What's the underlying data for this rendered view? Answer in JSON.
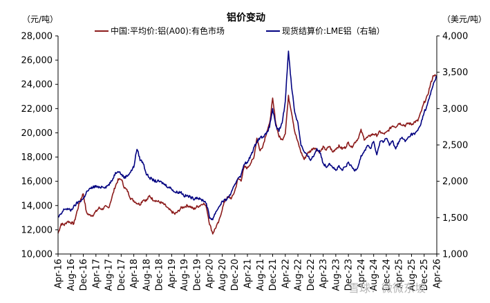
{
  "chart_data": {
    "type": "line",
    "title": "铝价变动",
    "left_unit": "（元/吨）",
    "right_unit": "（美元/吨）",
    "left_ylim": [
      10000,
      28000
    ],
    "right_ylim": [
      1000,
      4000
    ],
    "left_ticks": [
      "10,000",
      "12,000",
      "14,000",
      "16,000",
      "18,000",
      "20,000",
      "22,000",
      "24,000",
      "26,000",
      "28,000"
    ],
    "right_ticks": [
      "1,000",
      "1,500",
      "2,000",
      "2,500",
      "3,000",
      "3,500",
      "4,000"
    ],
    "x_labels": [
      "Apr-16",
      "Aug-16",
      "Dec-16",
      "Apr-17",
      "Aug-17",
      "Dec-17",
      "Apr-18",
      "Aug-18",
      "Dec-18",
      "Apr-19",
      "Aug-19",
      "Dec-19",
      "Apr-20",
      "Aug-20",
      "Dec-20",
      "Apr-21",
      "Aug-21",
      "Dec-21",
      "Apr-22",
      "Aug-22",
      "Dec-22",
      "Apr-23",
      "Aug-23",
      "Dec-23",
      "Apr-24",
      "Aug-24",
      "Dec-24",
      "Apr-25",
      "Aug-25",
      "Dec-25",
      "Apr-26"
    ],
    "x_range_months": [
      0,
      120
    ],
    "series": [
      {
        "name": "中国:平均价:铝(A00):有色市场",
        "axis": "left",
        "color": "#8B1A1A",
        "points": [
          [
            0,
            11700
          ],
          [
            1,
            12500
          ],
          [
            2,
            12400
          ],
          [
            3,
            12700
          ],
          [
            4,
            12600
          ],
          [
            5,
            12500
          ],
          [
            6,
            13500
          ],
          [
            7,
            14400
          ],
          [
            8,
            15000
          ],
          [
            9,
            13400
          ],
          [
            10,
            13200
          ],
          [
            11,
            13200
          ],
          [
            12,
            13500
          ],
          [
            13,
            13800
          ],
          [
            14,
            13700
          ],
          [
            15,
            13900
          ],
          [
            16,
            13800
          ],
          [
            17,
            14600
          ],
          [
            18,
            15500
          ],
          [
            19,
            16100
          ],
          [
            20,
            16200
          ],
          [
            21,
            15500
          ],
          [
            22,
            15200
          ],
          [
            23,
            14600
          ],
          [
            24,
            14400
          ],
          [
            25,
            14200
          ],
          [
            26,
            14100
          ],
          [
            27,
            14500
          ],
          [
            28,
            14400
          ],
          [
            29,
            14800
          ],
          [
            30,
            14500
          ],
          [
            31,
            14400
          ],
          [
            32,
            14300
          ],
          [
            33,
            14200
          ],
          [
            34,
            14000
          ],
          [
            35,
            13700
          ],
          [
            36,
            13500
          ],
          [
            37,
            13300
          ],
          [
            38,
            13500
          ],
          [
            39,
            13800
          ],
          [
            40,
            13900
          ],
          [
            41,
            14000
          ],
          [
            42,
            13900
          ],
          [
            43,
            13700
          ],
          [
            44,
            13900
          ],
          [
            45,
            14000
          ],
          [
            46,
            14200
          ],
          [
            47,
            13900
          ],
          [
            48,
            12500
          ],
          [
            49,
            11700
          ],
          [
            50,
            12200
          ],
          [
            51,
            12700
          ],
          [
            52,
            13700
          ],
          [
            53,
            14500
          ],
          [
            54,
            14700
          ],
          [
            55,
            14600
          ],
          [
            56,
            15200
          ],
          [
            57,
            16200
          ],
          [
            58,
            16100
          ],
          [
            59,
            17200
          ],
          [
            60,
            17100
          ],
          [
            61,
            17500
          ],
          [
            62,
            17900
          ],
          [
            63,
            19600
          ],
          [
            64,
            18500
          ],
          [
            65,
            19000
          ],
          [
            66,
            20000
          ],
          [
            67,
            20700
          ],
          [
            68,
            22800
          ],
          [
            69,
            20800
          ],
          [
            70,
            19700
          ],
          [
            71,
            19400
          ],
          [
            72,
            20000
          ],
          [
            73,
            23000
          ],
          [
            74,
            21700
          ],
          [
            75,
            20100
          ],
          [
            76,
            19200
          ],
          [
            77,
            18400
          ],
          [
            78,
            17800
          ],
          [
            79,
            18300
          ],
          [
            80,
            18500
          ],
          [
            81,
            18800
          ],
          [
            82,
            18600
          ],
          [
            83,
            18400
          ],
          [
            84,
            18800
          ],
          [
            85,
            18600
          ],
          [
            86,
            18900
          ],
          [
            87,
            18400
          ],
          [
            88,
            18700
          ],
          [
            89,
            18900
          ],
          [
            90,
            18700
          ],
          [
            91,
            18800
          ],
          [
            92,
            19200
          ],
          [
            93,
            18800
          ],
          [
            94,
            19200
          ],
          [
            95,
            19500
          ],
          [
            96,
            20200
          ],
          [
            97,
            19500
          ],
          [
            98,
            19600
          ],
          [
            99,
            19800
          ],
          [
            100,
            19900
          ],
          [
            101,
            19800
          ],
          [
            102,
            20100
          ],
          [
            103,
            19900
          ],
          [
            104,
            20000
          ],
          [
            105,
            20300
          ],
          [
            106,
            20600
          ],
          [
            107,
            20500
          ],
          [
            108,
            20800
          ],
          [
            109,
            20700
          ],
          [
            110,
            20600
          ],
          [
            111,
            20800
          ],
          [
            112,
            20700
          ],
          [
            113,
            20900
          ],
          [
            114,
            21000
          ],
          [
            115,
            21700
          ],
          [
            116,
            22500
          ],
          [
            117,
            23000
          ],
          [
            118,
            24000
          ],
          [
            119,
            24800
          ],
          [
            120,
            24600
          ]
        ]
      },
      {
        "name": "现货结算价:LME铝（右轴）",
        "axis": "right",
        "color": "#000080",
        "points": [
          [
            0,
            1500
          ],
          [
            1,
            1550
          ],
          [
            2,
            1620
          ],
          [
            3,
            1620
          ],
          [
            4,
            1600
          ],
          [
            5,
            1650
          ],
          [
            6,
            1700
          ],
          [
            7,
            1730
          ],
          [
            8,
            1760
          ],
          [
            9,
            1850
          ],
          [
            10,
            1890
          ],
          [
            11,
            1920
          ],
          [
            12,
            1930
          ],
          [
            13,
            1910
          ],
          [
            14,
            1930
          ],
          [
            15,
            1920
          ],
          [
            16,
            1950
          ],
          [
            17,
            2000
          ],
          [
            18,
            2100
          ],
          [
            19,
            2150
          ],
          [
            20,
            2100
          ],
          [
            21,
            2050
          ],
          [
            22,
            2080
          ],
          [
            23,
            2130
          ],
          [
            24,
            2200
          ],
          [
            25,
            2450
          ],
          [
            26,
            2300
          ],
          [
            27,
            2250
          ],
          [
            28,
            2100
          ],
          [
            29,
            2050
          ],
          [
            30,
            2020
          ],
          [
            31,
            2000
          ],
          [
            32,
            2000
          ],
          [
            33,
            1980
          ],
          [
            34,
            1950
          ],
          [
            35,
            1920
          ],
          [
            36,
            1900
          ],
          [
            37,
            1850
          ],
          [
            38,
            1850
          ],
          [
            39,
            1850
          ],
          [
            40,
            1800
          ],
          [
            41,
            1800
          ],
          [
            42,
            1780
          ],
          [
            43,
            1760
          ],
          [
            44,
            1780
          ],
          [
            45,
            1750
          ],
          [
            46,
            1740
          ],
          [
            47,
            1700
          ],
          [
            48,
            1500
          ],
          [
            49,
            1480
          ],
          [
            50,
            1580
          ],
          [
            51,
            1650
          ],
          [
            52,
            1720
          ],
          [
            53,
            1740
          ],
          [
            54,
            1780
          ],
          [
            55,
            1850
          ],
          [
            56,
            1950
          ],
          [
            57,
            2050
          ],
          [
            58,
            2080
          ],
          [
            59,
            2250
          ],
          [
            60,
            2250
          ],
          [
            61,
            2350
          ],
          [
            62,
            2450
          ],
          [
            63,
            2550
          ],
          [
            64,
            2600
          ],
          [
            65,
            2620
          ],
          [
            66,
            2650
          ],
          [
            67,
            2750
          ],
          [
            68,
            3000
          ],
          [
            69,
            2750
          ],
          [
            70,
            2700
          ],
          [
            71,
            2800
          ],
          [
            72,
            3100
          ],
          [
            73,
            3800
          ],
          [
            74,
            3300
          ],
          [
            75,
            2950
          ],
          [
            76,
            2800
          ],
          [
            77,
            2500
          ],
          [
            78,
            2400
          ],
          [
            79,
            2350
          ],
          [
            80,
            2300
          ],
          [
            81,
            2350
          ],
          [
            82,
            2450
          ],
          [
            83,
            2400
          ],
          [
            84,
            2250
          ],
          [
            85,
            2200
          ],
          [
            86,
            2250
          ],
          [
            87,
            2200
          ],
          [
            88,
            2150
          ],
          [
            89,
            2200
          ],
          [
            90,
            2150
          ],
          [
            91,
            2200
          ],
          [
            92,
            2250
          ],
          [
            93,
            2200
          ],
          [
            94,
            2150
          ],
          [
            95,
            2200
          ],
          [
            96,
            2350
          ],
          [
            97,
            2400
          ],
          [
            98,
            2500
          ],
          [
            99,
            2450
          ],
          [
            100,
            2550
          ],
          [
            101,
            2350
          ],
          [
            102,
            2550
          ],
          [
            103,
            2550
          ],
          [
            104,
            2600
          ],
          [
            105,
            2500
          ],
          [
            106,
            2550
          ],
          [
            107,
            2450
          ],
          [
            108,
            2550
          ],
          [
            109,
            2600
          ],
          [
            110,
            2550
          ],
          [
            111,
            2600
          ],
          [
            112,
            2650
          ],
          [
            113,
            2650
          ],
          [
            114,
            2700
          ],
          [
            115,
            2800
          ],
          [
            116,
            2950
          ],
          [
            117,
            3050
          ],
          [
            118,
            3200
          ],
          [
            119,
            3350
          ],
          [
            120,
            3450
          ]
        ]
      }
    ],
    "watermark": "雪球：微微东坡"
  }
}
